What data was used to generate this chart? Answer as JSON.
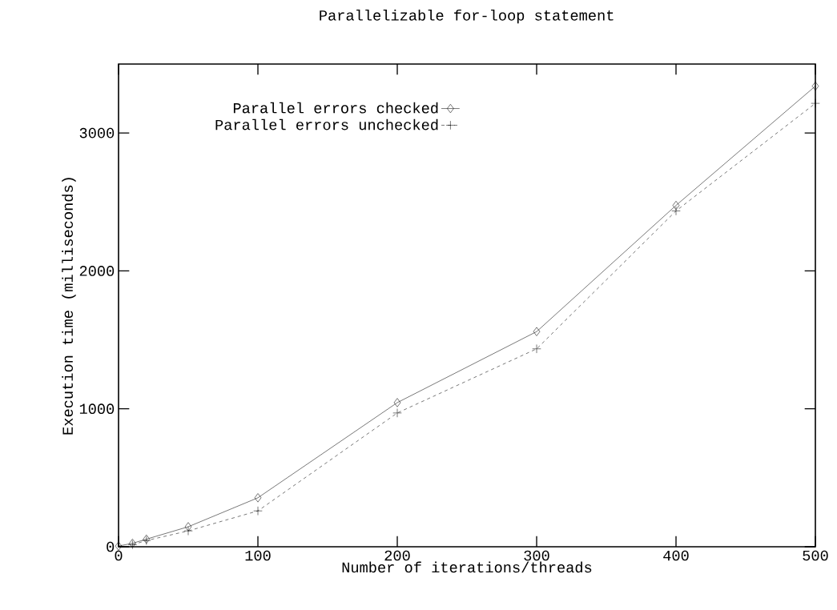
{
  "chart_data": {
    "type": "line",
    "title": "Parallelizable for-loop statement",
    "xlabel": "Number of iterations/threads",
    "ylabel": "Execution time (milliseconds)",
    "x": [
      0,
      10,
      20,
      50,
      100,
      200,
      300,
      400,
      500
    ],
    "series": [
      {
        "name": "Parallel errors checked",
        "color": "#000000",
        "marker": "diamond",
        "line_style": "solid",
        "values": [
          5,
          25,
          55,
          145,
          355,
          1045,
          1560,
          2475,
          3340
        ]
      },
      {
        "name": "Parallel errors unchecked",
        "color": "#000000",
        "marker": "cross",
        "line_style": "dashed",
        "values": [
          null,
          15,
          45,
          115,
          260,
          970,
          1435,
          2435,
          3215
        ]
      }
    ],
    "xlim": [
      0,
      500
    ],
    "xticks": [
      0,
      100,
      200,
      300,
      400,
      500
    ],
    "ylim": [
      0,
      3500
    ],
    "yticks": [
      0,
      1000,
      2000,
      3000
    ],
    "grid": false,
    "legend": "top left"
  }
}
